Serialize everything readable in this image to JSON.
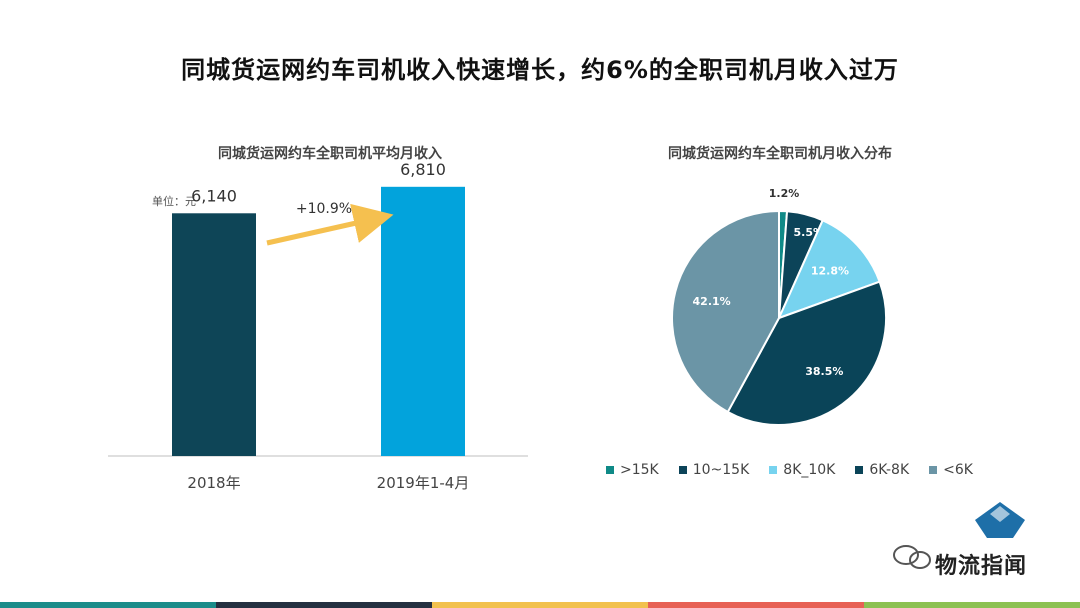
{
  "title": "同城货运网约车司机收入快速增长，约6%的全职司机月收入过万",
  "colors": {
    "bar_2018": "#0E4557",
    "bar_2019": "#02A3DC",
    "arrow": "#F5C04F",
    "axis": "#bfbfbf",
    "pie": [
      "#0F8A87",
      "#0C4459",
      "#77D3EF",
      "#0A4458",
      "#6B95A6"
    ],
    "stripes": [
      "#1A8C8A",
      "#243040",
      "#F2C14E",
      "#E76155",
      "#8CC152"
    ]
  },
  "chart_data": [
    {
      "type": "bar",
      "title": "同城货运网约车全职司机平均月收入",
      "unit_label": "单位：元",
      "categories": [
        "2018年",
        "2019年1-4月"
      ],
      "values": [
        6140,
        6810
      ],
      "value_labels": [
        "6,140",
        "6,810"
      ],
      "growth_label": "+10.9%",
      "ylim": [
        0,
        8500
      ]
    },
    {
      "type": "pie",
      "title": "同城货运网约车全职司机月收入分布",
      "labels": [
        ">15K",
        "10~15K",
        "8K_10K",
        "6K-8K",
        "<6K"
      ],
      "values": [
        1.2,
        5.5,
        12.8,
        38.5,
        42.1
      ],
      "value_labels": [
        "1.2%",
        "5.5%",
        "12.8%",
        "38.5%",
        "42.1%"
      ]
    }
  ],
  "watermark": {
    "brand_text": "物流指闻"
  }
}
